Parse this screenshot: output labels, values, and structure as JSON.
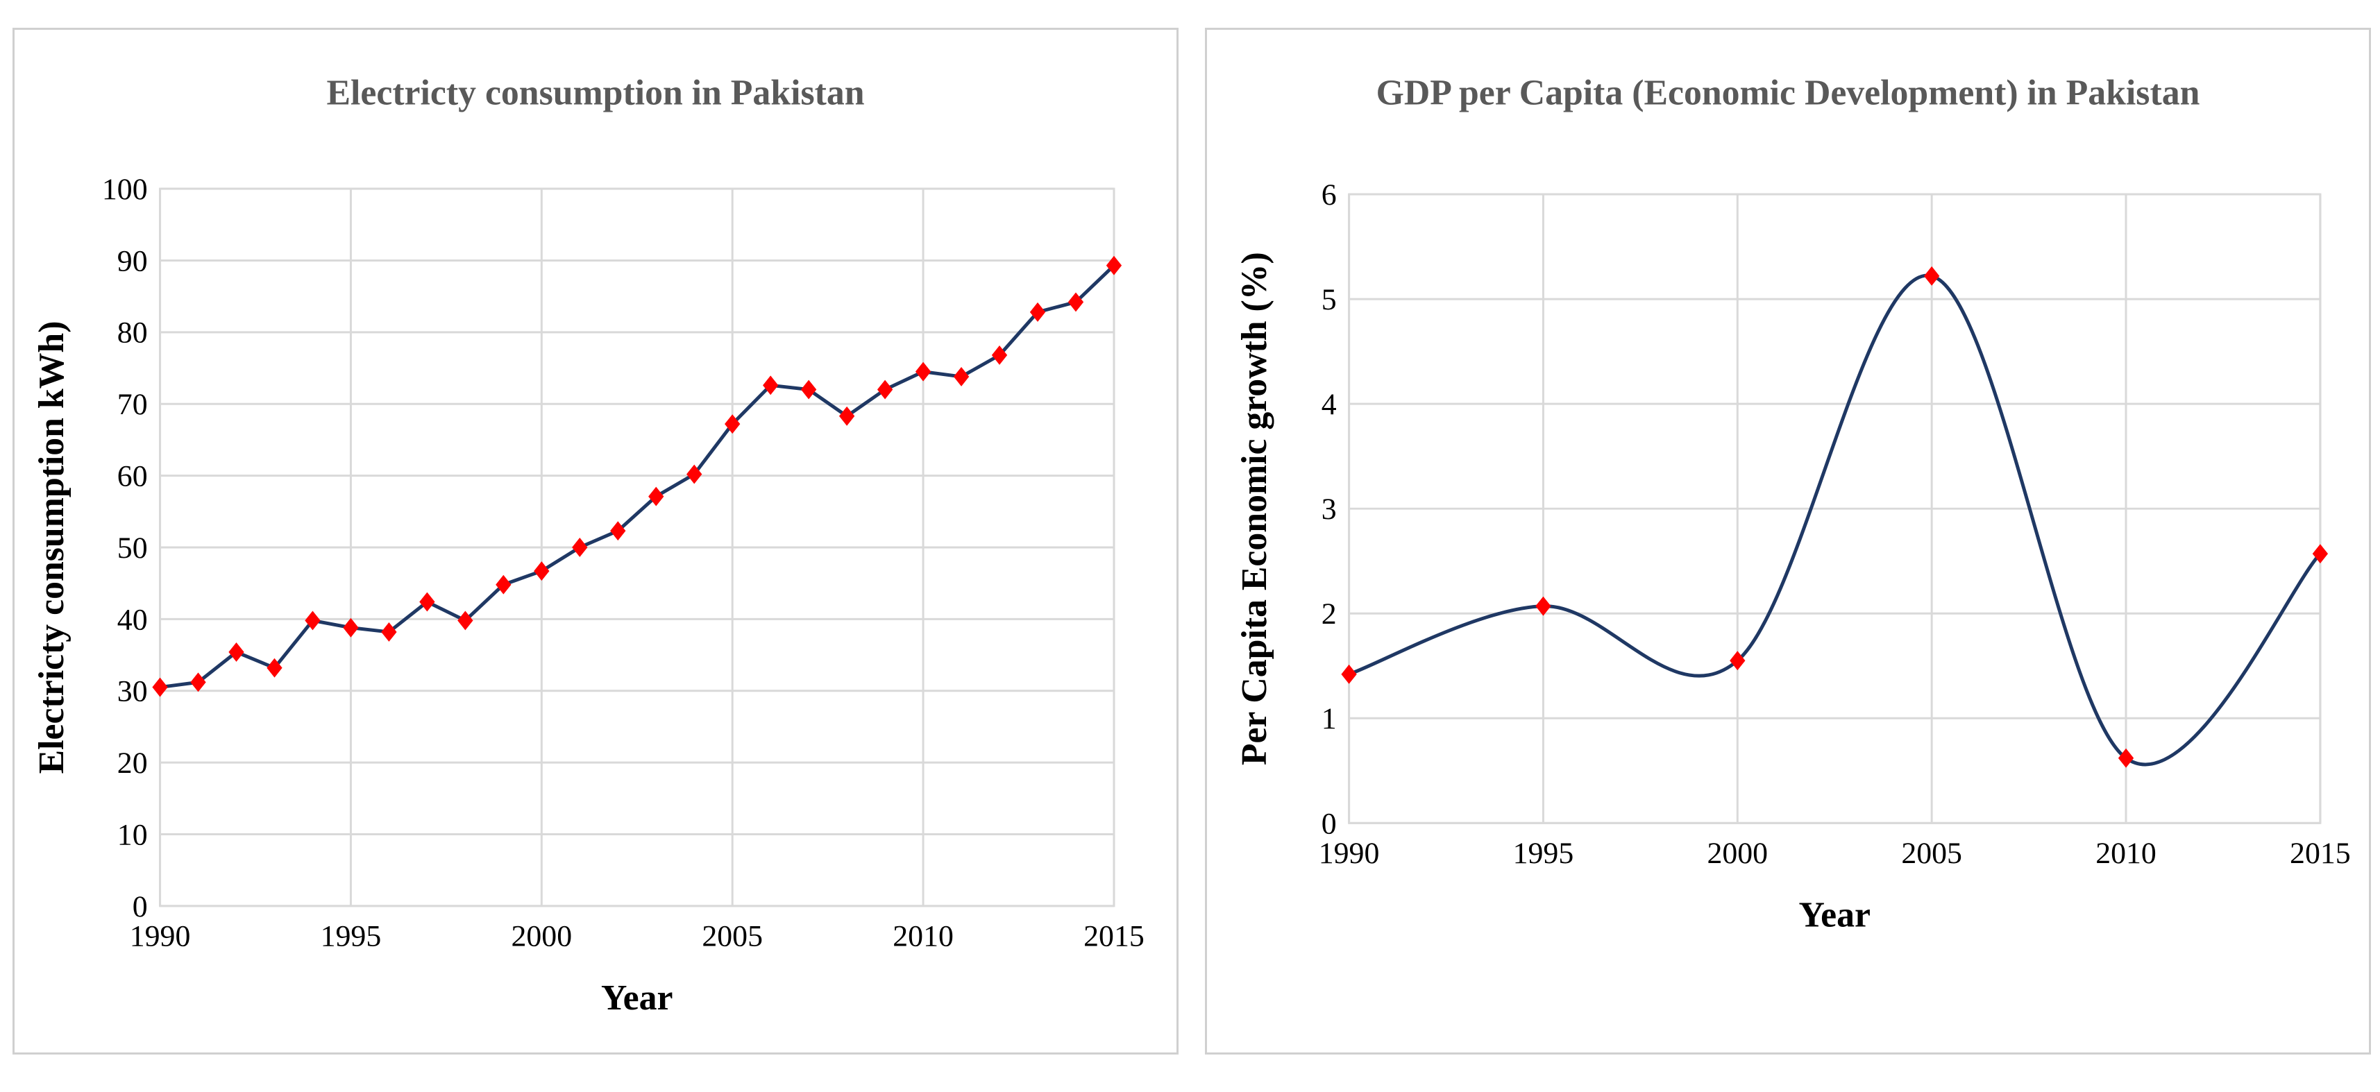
{
  "chart_data": [
    {
      "type": "line",
      "title": "Electricty consumption in Pakistan",
      "xlabel": "Year",
      "ylabel": "Electricty consumption kWh)",
      "xlim": [
        1990,
        2015
      ],
      "ylim": [
        0,
        100
      ],
      "xticks": [
        "1990",
        "1995",
        "2000",
        "2005",
        "2010",
        "2015"
      ],
      "yticks": [
        "0",
        "10",
        "20",
        "30",
        "40",
        "50",
        "60",
        "70",
        "80",
        "90",
        "100"
      ],
      "grid": true,
      "smooth": false,
      "line_color": "#1f3864",
      "marker_color": "#ff0000",
      "series": [
        {
          "x": [
            1990,
            1991,
            1992,
            1993,
            1994,
            1995,
            1996,
            1997,
            1998,
            1999,
            2000,
            2001,
            2002,
            2003,
            2004,
            2005,
            2006,
            2007,
            2008,
            2009,
            2010,
            2011,
            2012,
            2013,
            2014,
            2015
          ],
          "values": [
            30.5,
            31.2,
            35.4,
            33.2,
            39.8,
            38.8,
            38.2,
            42.4,
            39.8,
            44.8,
            46.7,
            50.0,
            52.3,
            57.1,
            60.2,
            67.2,
            72.6,
            72.0,
            68.3,
            72.0,
            74.5,
            73.8,
            76.8,
            82.8,
            84.2,
            89.3
          ]
        }
      ]
    },
    {
      "type": "line",
      "title": "GDP per Capita (Economic Development) in Pakistan",
      "xlabel": "Year",
      "ylabel": "Per Capita Economic growth (%)",
      "xlim": [
        1990,
        2015
      ],
      "ylim": [
        0,
        6
      ],
      "xticks": [
        "1990",
        "1995",
        "2000",
        "2005",
        "2010",
        "2015"
      ],
      "yticks": [
        "0",
        "1",
        "2",
        "3",
        "4",
        "5",
        "6"
      ],
      "grid": true,
      "smooth": true,
      "line_color": "#1f3864",
      "marker_color": "#ff0000",
      "series": [
        {
          "x": [
            1990,
            1995,
            2000,
            2005,
            2010,
            2015
          ],
          "values": [
            1.42,
            2.07,
            1.55,
            5.22,
            0.62,
            2.57
          ]
        }
      ]
    }
  ]
}
